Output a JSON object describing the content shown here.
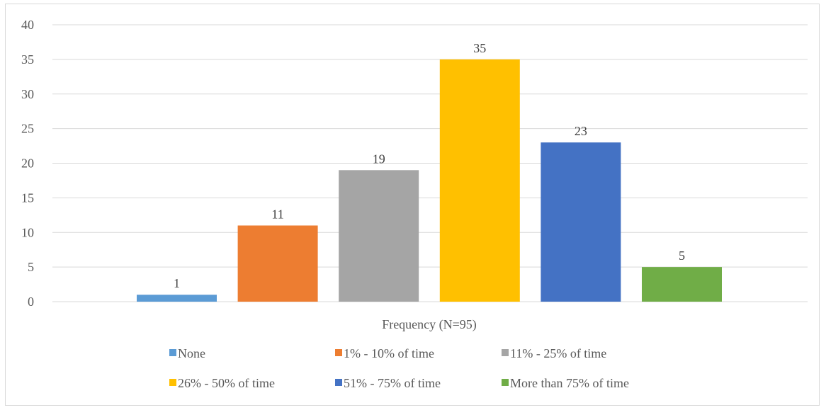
{
  "chart_data": {
    "type": "bar",
    "categories": [
      "Frequency (N=95)"
    ],
    "series": [
      {
        "name": "None",
        "values": [
          1
        ],
        "color": "#5B9BD5"
      },
      {
        "name": "1% - 10% of time",
        "values": [
          11
        ],
        "color": "#ED7D31"
      },
      {
        "name": "11% - 25% of time",
        "values": [
          19
        ],
        "color": "#A5A5A5"
      },
      {
        "name": "26% - 50% of time",
        "values": [
          35
        ],
        "color": "#FFC000"
      },
      {
        "name": "51% - 75% of time",
        "values": [
          23
        ],
        "color": "#4472C4"
      },
      {
        "name": "More than 75% of time",
        "values": [
          5
        ],
        "color": "#70AD47"
      }
    ],
    "ylim": [
      0,
      40
    ],
    "yticks": [
      0,
      5,
      10,
      15,
      20,
      25,
      30,
      35,
      40
    ],
    "grid": true,
    "data_labels": true,
    "legend_position": "bottom"
  }
}
